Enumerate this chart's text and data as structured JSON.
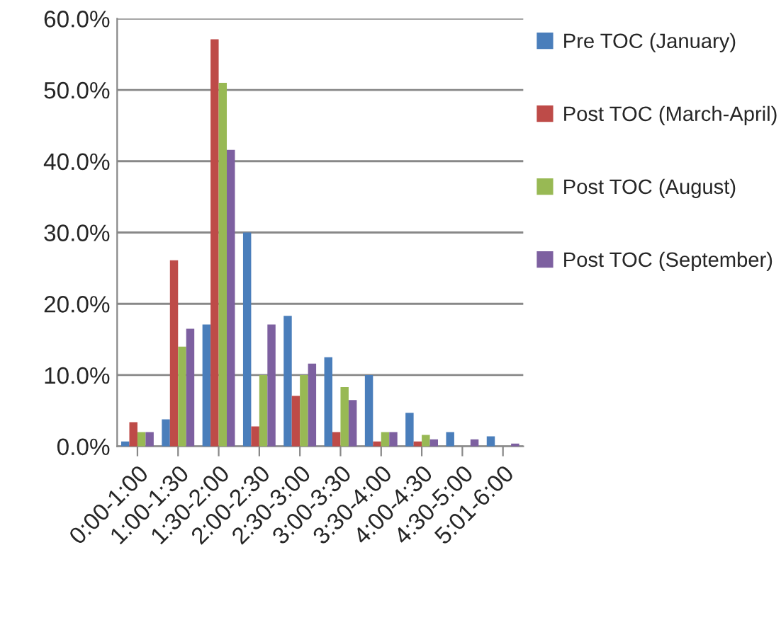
{
  "chart_data": {
    "type": "bar",
    "categories": [
      "0:00-1:00",
      "1:00-1:30",
      "1:30-2:00",
      "2:00-2:30",
      "2:30-3:00",
      "3:00-3:30",
      "3:30-4:00",
      "4:00-4:30",
      "4:30-5:00",
      "5:01-6:00"
    ],
    "series": [
      {
        "name": "Pre TOC (January)",
        "color": "#4a7ebb",
        "values": [
          0.7,
          3.8,
          17.1,
          30.0,
          18.3,
          12.5,
          10.0,
          4.7,
          2.0,
          1.4
        ]
      },
      {
        "name": "Post TOC (March-April)",
        "color": "#be4b48",
        "values": [
          3.4,
          26.1,
          57.1,
          2.8,
          7.1,
          2.0,
          0.7,
          0.7,
          null,
          null
        ]
      },
      {
        "name": "Post TOC (August)",
        "color": "#98b954",
        "values": [
          2.0,
          14.0,
          51.0,
          10.0,
          10.0,
          8.3,
          2.0,
          1.6,
          null,
          null
        ]
      },
      {
        "name": "Post TOC (September)",
        "color": "#7d60a0",
        "values": [
          2.0,
          16.5,
          41.6,
          17.1,
          11.6,
          6.5,
          2.0,
          1.0,
          1.0,
          0.4
        ]
      }
    ],
    "ylim": [
      0,
      60
    ],
    "yticks": [
      {
        "value": 0,
        "label": "0.0%"
      },
      {
        "value": 10,
        "label": "10.0%"
      },
      {
        "value": 20,
        "label": "20.0%"
      },
      {
        "value": 30,
        "label": "30.0%"
      },
      {
        "value": 40,
        "label": "40.0%"
      },
      {
        "value": 50,
        "label": "50.0%"
      },
      {
        "value": 60,
        "label": "60.0%"
      }
    ],
    "grid": "y",
    "legend": "right"
  }
}
